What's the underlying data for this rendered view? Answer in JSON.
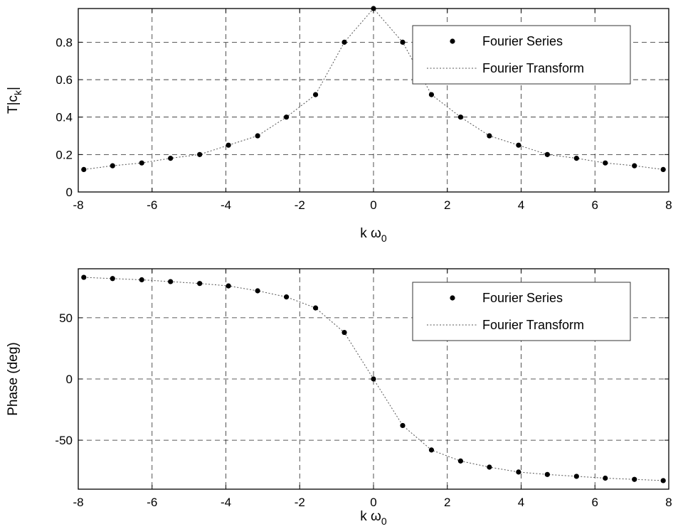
{
  "chart_data": [
    {
      "type": "scatter",
      "xlabel": "k ω",
      "xlabel_sub": "0",
      "ylabel": "T|c|",
      "ylabel_sub": "k",
      "xlim": [
        -8,
        8
      ],
      "ylim": [
        0,
        0.98
      ],
      "xticks": [
        -8,
        -6,
        -4,
        -2,
        0,
        2,
        4,
        6,
        8
      ],
      "yticks": [
        0,
        0.2,
        0.4,
        0.6,
        0.8
      ],
      "ytick_labels": [
        "0",
        "0.2",
        "0.4",
        "0.6",
        "0.8"
      ],
      "grid": true,
      "legend": {
        "placement": "top-right",
        "entries": [
          "Fourier Series",
          "Fourier Transform"
        ]
      },
      "series": [
        {
          "name": "Fourier Series",
          "style": "dots",
          "x": [
            -7.85,
            -7.07,
            -6.28,
            -5.5,
            -4.71,
            -3.93,
            -3.14,
            -2.36,
            -1.57,
            -0.79,
            0,
            0.79,
            1.57,
            2.36,
            3.14,
            3.93,
            4.71,
            5.5,
            6.28,
            7.07,
            7.85
          ],
          "y": [
            0.12,
            0.14,
            0.155,
            0.18,
            0.2,
            0.25,
            0.3,
            0.4,
            0.52,
            0.8,
            0.98,
            0.8,
            0.52,
            0.4,
            0.3,
            0.25,
            0.2,
            0.18,
            0.155,
            0.14,
            0.12
          ]
        },
        {
          "name": "Fourier Transform",
          "style": "dotted-line",
          "x": [
            -7.85,
            -7.07,
            -6.28,
            -5.5,
            -4.71,
            -3.93,
            -3.14,
            -2.36,
            -1.57,
            -0.79,
            0,
            0.79,
            1.57,
            2.36,
            3.14,
            3.93,
            4.71,
            5.5,
            6.28,
            7.07,
            7.85
          ],
          "y": [
            0.12,
            0.14,
            0.155,
            0.18,
            0.2,
            0.25,
            0.3,
            0.4,
            0.52,
            0.8,
            0.98,
            0.8,
            0.52,
            0.4,
            0.3,
            0.25,
            0.2,
            0.18,
            0.155,
            0.14,
            0.12
          ]
        }
      ]
    },
    {
      "type": "scatter",
      "xlabel": "k ω",
      "xlabel_sub": "0",
      "ylabel": "Phase (deg)",
      "xlim": [
        -8,
        8
      ],
      "ylim": [
        -90,
        90
      ],
      "xticks": [
        -8,
        -6,
        -4,
        -2,
        0,
        2,
        4,
        6,
        8
      ],
      "yticks": [
        -50,
        0,
        50
      ],
      "ytick_labels": [
        "-50",
        "0",
        "50"
      ],
      "grid": true,
      "legend": {
        "placement": "top-right",
        "entries": [
          "Fourier Series",
          "Fourier Transform"
        ]
      },
      "series": [
        {
          "name": "Fourier Series",
          "style": "dots",
          "x": [
            -7.85,
            -7.07,
            -6.28,
            -5.5,
            -4.71,
            -3.93,
            -3.14,
            -2.36,
            -1.57,
            -0.79,
            0,
            0.79,
            1.57,
            2.36,
            3.14,
            3.93,
            4.71,
            5.5,
            6.28,
            7.07,
            7.85
          ],
          "y": [
            83,
            82,
            81,
            79.5,
            78,
            76,
            72,
            67,
            58,
            38,
            0,
            -38,
            -58,
            -67,
            -72,
            -76,
            -78,
            -79.5,
            -81,
            -82,
            -83
          ]
        },
        {
          "name": "Fourier Transform",
          "style": "dotted-line",
          "x": [
            -7.85,
            -7.07,
            -6.28,
            -5.5,
            -4.71,
            -3.93,
            -3.14,
            -2.36,
            -1.57,
            -0.79,
            0,
            0.79,
            1.57,
            2.36,
            3.14,
            3.93,
            4.71,
            5.5,
            6.28,
            7.07,
            7.85
          ],
          "y": [
            83,
            82,
            81,
            79.5,
            78,
            76,
            72,
            67,
            58,
            38,
            0,
            -38,
            -58,
            -67,
            -72,
            -76,
            -78,
            -79.5,
            -81,
            -82,
            -83
          ]
        }
      ]
    }
  ]
}
